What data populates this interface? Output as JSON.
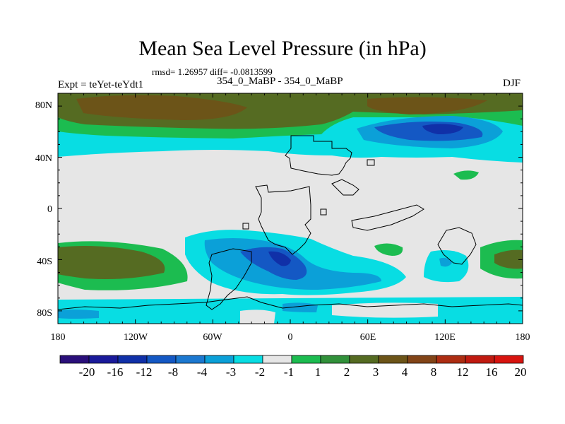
{
  "header": {
    "title": "Mean Sea Level Pressure (in hPa)",
    "stats": "rmsd= 1.26957 diff= -0.0813599",
    "experiment": "Expt = teYet-teYdt1",
    "subtitle": "354_0_MaBP - 354_0_MaBP",
    "season": "DJF"
  },
  "axes": {
    "lat_labels": [
      "80N",
      "40N",
      "0",
      "40S",
      "80S"
    ],
    "lon_labels": [
      "180",
      "120W",
      "60W",
      "0",
      "60E",
      "120E",
      "180"
    ]
  },
  "colorbar": {
    "labels": [
      "-20",
      "-16",
      "-12",
      "-8",
      "-4",
      "-3",
      "-2",
      "-1",
      "1",
      "2",
      "3",
      "4",
      "8",
      "12",
      "16",
      "20"
    ],
    "colors": [
      "#2a0f7a",
      "#1a1a9a",
      "#1030a8",
      "#1458c4",
      "#1c78d0",
      "#0ba0d8",
      "#08dde3",
      "#e6e6e6",
      "#1cbc50",
      "#31913a",
      "#556b22",
      "#6c5418",
      "#824417",
      "#ad2d12",
      "#c01a10",
      "#d8140f"
    ]
  },
  "colors": {
    "neutral": "#e6e6e6",
    "light_cyan": "#08dde3",
    "mid_blue": "#0ba0d8",
    "deep_blue": "#1458c4",
    "light_green": "#1cbc50",
    "mid_green": "#31913a",
    "olive": "#556b22",
    "brown": "#6c5418"
  }
}
